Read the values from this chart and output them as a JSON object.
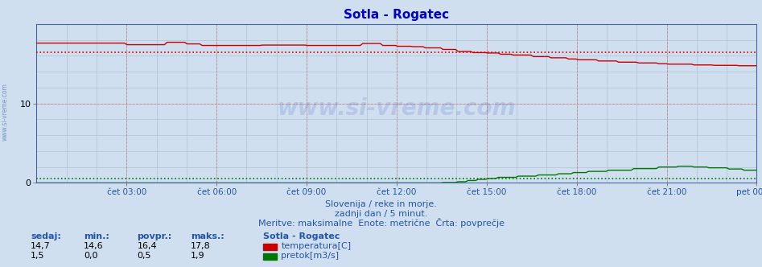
{
  "title": "Sotla - Rogatec",
  "title_color": "#0000cc",
  "bg_color": "#d0dff0",
  "plot_bg_color": "#d0dff0",
  "temp_color": "#cc0000",
  "flow_color": "#007700",
  "avg_temp_color": "#cc0000",
  "avg_flow_color": "#007700",
  "temp_avg": 16.4,
  "flow_avg": 0.5,
  "temp_max": 17.8,
  "flow_max": 1.9,
  "temp_current": 14.7,
  "flow_current": 1.5,
  "temp_min": 14.6,
  "flow_min": 0.0,
  "ylim": [
    0,
    20
  ],
  "yticks": [
    0,
    10
  ],
  "xtick_labels": [
    "čet 03:00",
    "čet 06:00",
    "čet 09:00",
    "čet 12:00",
    "čet 15:00",
    "čet 18:00",
    "čet 21:00",
    "pet 00:00"
  ],
  "footer_line1": "Slovenija / reke in morje.",
  "footer_line2": "zadnji dan / 5 minut.",
  "footer_line3": "Meritve: maksimalne  Enote: metrične  Črta: povprečje",
  "footer_color": "#2255aa",
  "label_color": "#2255aa",
  "watermark": "www.si-vreme.com",
  "grid_color_v_major": "#cc8888",
  "grid_color_h_major": "#cc8888",
  "grid_color_minor": "#aabccc",
  "n_points": 288
}
